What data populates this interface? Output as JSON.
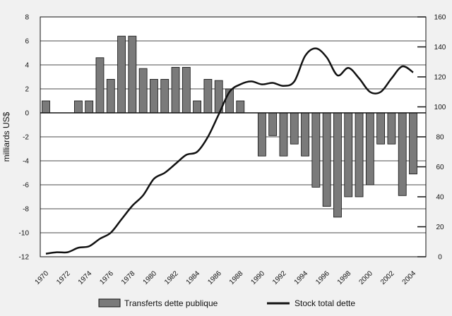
{
  "chart_data": {
    "type": "bar+line",
    "title": "",
    "ylabel_left": "milliards US$",
    "ylim_left": [
      -12,
      8
    ],
    "yticks_left": [
      -12,
      -10,
      -8,
      -6,
      -4,
      -2,
      0,
      2,
      4,
      6,
      8
    ],
    "ylim_right": [
      0,
      160
    ],
    "yticks_right": [
      0,
      20,
      40,
      60,
      80,
      100,
      120,
      140,
      160
    ],
    "xlim": [
      1970,
      2004
    ],
    "xticks": [
      "1970",
      "1972",
      "1974",
      "1976",
      "1978",
      "1980",
      "1982",
      "1984",
      "1986",
      "1988",
      "1990",
      "1992",
      "1994",
      "1996",
      "1998",
      "2000",
      "2002",
      "2004"
    ],
    "grid_lines_left": [
      -10,
      -8,
      -6,
      -4,
      -2,
      2,
      4,
      6
    ],
    "legend_position": "bottom",
    "colors": {
      "bar_fill": "#7a7a7a",
      "bar_stroke": "#111111",
      "line": "#111111",
      "plot_bg": "#ffffff",
      "page_bg": "#f1f1f1"
    },
    "series": [
      {
        "name": "Transferts dette publique",
        "axis": "left",
        "kind": "bar",
        "x": [
          1970,
          1971,
          1972,
          1973,
          1974,
          1975,
          1976,
          1977,
          1978,
          1979,
          1980,
          1981,
          1982,
          1983,
          1984,
          1985,
          1986,
          1987,
          1988,
          1989,
          1990,
          1991,
          1992,
          1993,
          1994,
          1995,
          1996,
          1997,
          1998,
          1999,
          2000,
          2001,
          2002,
          2003,
          2004
        ],
        "values": [
          1.0,
          0,
          0,
          1.0,
          1.0,
          4.6,
          2.8,
          6.4,
          6.4,
          3.7,
          2.8,
          2.8,
          3.8,
          3.8,
          1.0,
          2.8,
          2.7,
          2.0,
          1.0,
          0,
          -3.6,
          -1.9,
          -3.6,
          -2.6,
          -3.6,
          -6.2,
          -7.8,
          -8.7,
          -7.0,
          -7.0,
          -6.0,
          -2.6,
          -2.6,
          -6.9,
          -5.1
        ]
      },
      {
        "name": "Stock total dette",
        "axis": "right",
        "kind": "line",
        "x": [
          1970,
          1971,
          1972,
          1973,
          1974,
          1975,
          1976,
          1977,
          1978,
          1979,
          1980,
          1981,
          1982,
          1983,
          1984,
          1985,
          1986,
          1987,
          1988,
          1989,
          1990,
          1991,
          1992,
          1993,
          1994,
          1995,
          1996,
          1997,
          1998,
          1999,
          2000,
          2001,
          2002,
          2003,
          2004
        ],
        "values": [
          2,
          3,
          3,
          6,
          7,
          12,
          16,
          25,
          34,
          41,
          52,
          56,
          62,
          68,
          70,
          80,
          95,
          110,
          115,
          117,
          115,
          116,
          114,
          117,
          134,
          139,
          133,
          121,
          126,
          119,
          110,
          110,
          119,
          127,
          123
        ]
      }
    ]
  }
}
